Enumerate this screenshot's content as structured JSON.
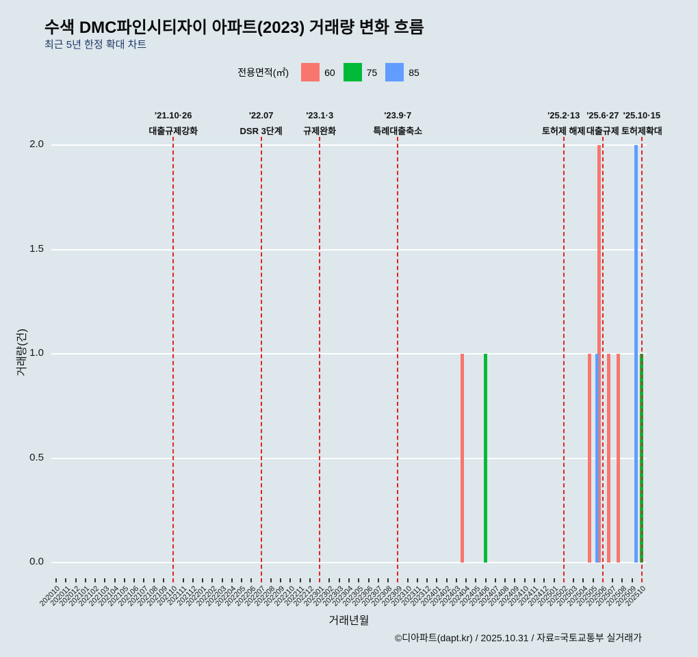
{
  "header": {
    "title": "수색 DMC파인시티자이 아파트(2023) 거래량 변화 흐름",
    "subtitle": "최근 5년 한정 확대 차트"
  },
  "footer": {
    "credit": "©디아파트(dapt.kr) / 2025.10.31 / 자료=국토교통부 실거래가"
  },
  "chart_data": {
    "type": "bar",
    "title": "수색 DMC파인시티자이 아파트(2023) 거래량 변화 흐름",
    "subtitle": "최근 5년 한정 확대 차트",
    "legend_title": "전용면적(㎡)",
    "xlabel": "거래년월",
    "ylabel": "거래량(건)",
    "ylim": [
      0,
      2
    ],
    "yticks": [
      "0.0",
      "0.5",
      "1.0",
      "1.5",
      "2.0"
    ],
    "grid": "horizontal-white",
    "background": "#dde7ec",
    "grid_color": "#ffffff",
    "event_line_color": "#e02424",
    "categories": [
      "202010",
      "202011",
      "202012",
      "202101",
      "202102",
      "202103",
      "202104",
      "202105",
      "202106",
      "202107",
      "202108",
      "202109",
      "202110",
      "202111",
      "202112",
      "202201",
      "202202",
      "202203",
      "202204",
      "202205",
      "202206",
      "202207",
      "202208",
      "202209",
      "202210",
      "202211",
      "202212",
      "202301",
      "202302",
      "202303",
      "202304",
      "202305",
      "202306",
      "202307",
      "202308",
      "202309",
      "202310",
      "202311",
      "202312",
      "202401",
      "202402",
      "202403",
      "202404",
      "202405",
      "202406",
      "202407",
      "202408",
      "202409",
      "202410",
      "202411",
      "202412",
      "202501",
      "202502",
      "202503",
      "202504",
      "202505",
      "202506",
      "202507",
      "202508",
      "202509",
      "202510"
    ],
    "series": [
      {
        "name": "60",
        "color": "#f8766d",
        "points": {
          "202404": 1,
          "202505": 1,
          "202506": 2,
          "202507": 1,
          "202508": 1
        }
      },
      {
        "name": "75",
        "color": "#00ba38",
        "points": {
          "202406": 1,
          "202510": 1
        }
      },
      {
        "name": "85",
        "color": "#619cff",
        "points": {
          "202505": 1,
          "202509": 2
        }
      }
    ],
    "event_lines": [
      {
        "month": "202110",
        "date": "'21.10·26",
        "label": "대출규제강화"
      },
      {
        "month": "202207",
        "date": "'22.07",
        "label": "DSR 3단계"
      },
      {
        "month": "202301",
        "date": "'23.1·3",
        "label": "규제완화"
      },
      {
        "month": "202309",
        "date": "'23.9·7",
        "label": "특례대출축소"
      },
      {
        "month": "202502",
        "date": "'25.2·13",
        "label": "토허제 해제"
      },
      {
        "month": "202506",
        "date": "'25.6·27",
        "label": "대출규제"
      },
      {
        "month": "202510",
        "date": "'25.10·15",
        "label": "토허제확대"
      }
    ]
  }
}
